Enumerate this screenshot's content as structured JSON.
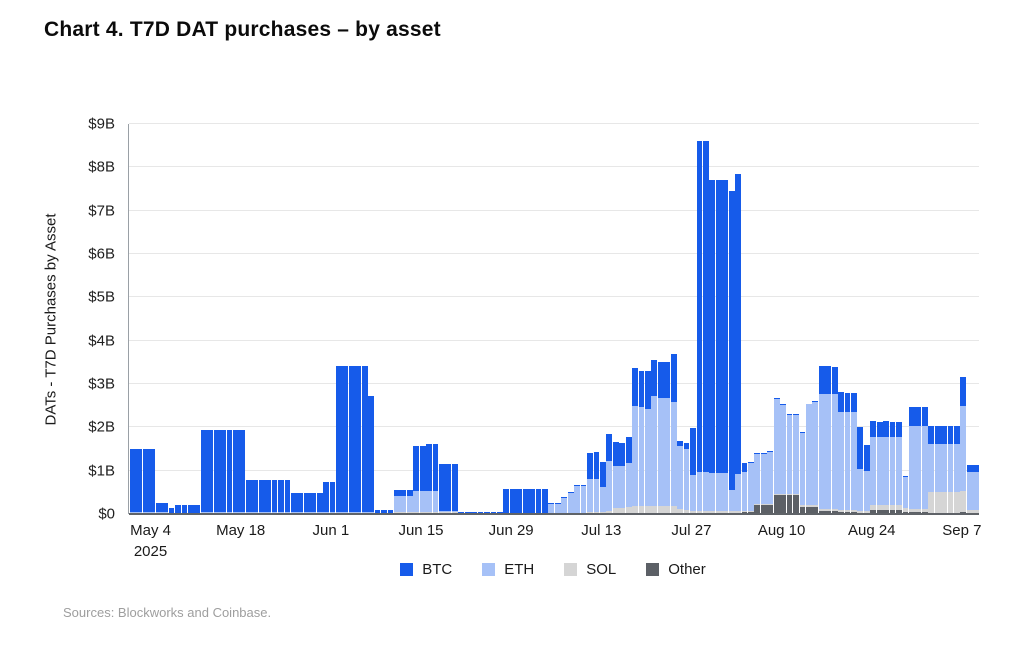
{
  "page": {
    "title": "Chart 4. T7D DAT purchases – by asset",
    "source_note": "Sources: Blockworks and Coinbase."
  },
  "chart_data": {
    "type": "bar",
    "stacked": true,
    "title": "Chart 4. T7D DAT purchases – by asset",
    "xlabel": "",
    "ylabel": "DATs - T7D Purchases by Asset",
    "y_unit": "USD billions",
    "ylim": [
      0,
      9
    ],
    "grid": true,
    "legend_position": "bottom",
    "y_tick_labels": [
      "$0",
      "$1B",
      "$2B",
      "$3B",
      "$4B",
      "$5B",
      "$6B",
      "$7B",
      "$8B",
      "$9B"
    ],
    "x_tick_labels": [
      "May 4",
      "May 18",
      "Jun 1",
      "Jun 15",
      "Jun 29",
      "Jul 13",
      "Jul 27",
      "Aug 10",
      "Aug 24",
      "Sep 7"
    ],
    "x_tick_year": "2025",
    "x_tick_bar_indices": [
      3,
      17,
      31,
      45,
      59,
      73,
      87,
      101,
      115,
      129
    ],
    "legend": [
      "BTC",
      "ETH",
      "SOL",
      "Other"
    ],
    "colors": {
      "BTC": "#165BEA",
      "ETH": "#A6C1F7",
      "SOL": "#D5D5D5",
      "Other": "#5C6066"
    },
    "series": [
      {
        "name": "BTC",
        "values": [
          1.46,
          1.46,
          1.46,
          1.46,
          0.21,
          0.21,
          0.12,
          0.19,
          0.19,
          0.19,
          0.19,
          1.91,
          1.91,
          1.91,
          1.89,
          1.89,
          1.89,
          1.89,
          0.74,
          0.74,
          0.74,
          0.74,
          0.74,
          0.74,
          0.74,
          0.44,
          0.44,
          0.44,
          0.44,
          0.44,
          0.71,
          0.71,
          3.38,
          3.38,
          3.38,
          3.38,
          3.38,
          2.68,
          0.07,
          0.07,
          0.07,
          0.14,
          0.14,
          0.14,
          1.04,
          1.04,
          1.09,
          1.09,
          1.07,
          1.07,
          1.07,
          0.03,
          0.03,
          0.03,
          0.03,
          0.03,
          0.03,
          0.03,
          0.55,
          0.55,
          0.55,
          0.55,
          0.55,
          0.55,
          0.55,
          0.02,
          0.02,
          0.02,
          0.02,
          0.02,
          0.02,
          0.62,
          0.62,
          0.57,
          0.62,
          0.54,
          0.53,
          0.61,
          0.86,
          0.84,
          0.88,
          0.84,
          0.82,
          0.84,
          1.12,
          0.12,
          0.15,
          1.09,
          7.65,
          7.65,
          6.75,
          6.75,
          6.75,
          6.9,
          6.93,
          0.21,
          0.02,
          0.02,
          0.02,
          0.02,
          0.02,
          0.02,
          0.02,
          0.02,
          0.02,
          0.02,
          0.02,
          0.64,
          0.64,
          0.62,
          0.46,
          0.44,
          0.44,
          0.97,
          0.61,
          0.37,
          0.34,
          0.37,
          0.34,
          0.34,
          0.02,
          0.44,
          0.44,
          0.44,
          0.41,
          0.41,
          0.41,
          0.41,
          0.41,
          0.67,
          0.17,
          0.17
        ]
      },
      {
        "name": "ETH",
        "values": [
          0.03,
          0.03,
          0.03,
          0.03,
          0.02,
          0.02,
          0.02,
          0.02,
          0.02,
          0.02,
          0.02,
          0.02,
          0.02,
          0.02,
          0.02,
          0.02,
          0.02,
          0.02,
          0.02,
          0.02,
          0.02,
          0.02,
          0.02,
          0.02,
          0.02,
          0.02,
          0.02,
          0.02,
          0.02,
          0.02,
          0.02,
          0.02,
          0.02,
          0.02,
          0.02,
          0.02,
          0.02,
          0.02,
          0.02,
          0.02,
          0.02,
          0.37,
          0.37,
          0.37,
          0.48,
          0.48,
          0.49,
          0.49,
          0.03,
          0.03,
          0.03,
          0.01,
          0.01,
          0.01,
          0.01,
          0.01,
          0.01,
          0.01,
          0.02,
          0.02,
          0.02,
          0.02,
          0.02,
          0.02,
          0.02,
          0.23,
          0.23,
          0.37,
          0.46,
          0.61,
          0.61,
          0.76,
          0.77,
          0.57,
          1.14,
          0.98,
          0.98,
          1.01,
          2.32,
          2.28,
          2.24,
          2.54,
          2.5,
          2.5,
          2.4,
          1.45,
          1.41,
          0.83,
          0.91,
          0.91,
          0.89,
          0.89,
          0.89,
          0.49,
          0.86,
          0.9,
          1.11,
          1.15,
          1.15,
          1.2,
          2.18,
          2.04,
          1.81,
          1.81,
          1.68,
          2.33,
          2.38,
          2.67,
          2.67,
          2.67,
          2.25,
          2.25,
          2.25,
          0.95,
          0.91,
          1.58,
          1.58,
          1.58,
          1.58,
          1.58,
          0.71,
          1.92,
          1.92,
          1.92,
          1.1,
          1.1,
          1.1,
          1.1,
          1.1,
          1.97,
          0.88,
          0.88
        ]
      },
      {
        "name": "SOL",
        "values": [
          0.01,
          0.01,
          0.01,
          0.01,
          0.01,
          0.01,
          0.01,
          0.01,
          0.01,
          0.01,
          0.01,
          0.01,
          0.01,
          0.01,
          0.01,
          0.01,
          0.01,
          0.01,
          0.01,
          0.01,
          0.01,
          0.01,
          0.01,
          0.01,
          0.01,
          0.01,
          0.01,
          0.01,
          0.01,
          0.01,
          0.01,
          0.01,
          0.01,
          0.01,
          0.01,
          0.01,
          0.01,
          0.01,
          0.01,
          0.01,
          0.01,
          0.02,
          0.02,
          0.02,
          0.02,
          0.02,
          0.02,
          0.02,
          0.02,
          0.02,
          0.02,
          0.01,
          0.01,
          0.01,
          0.01,
          0.01,
          0.01,
          0.01,
          0.01,
          0.01,
          0.01,
          0.01,
          0.01,
          0.01,
          0.01,
          0.01,
          0.01,
          0.01,
          0.02,
          0.03,
          0.03,
          0.03,
          0.03,
          0.04,
          0.06,
          0.12,
          0.12,
          0.14,
          0.16,
          0.16,
          0.16,
          0.16,
          0.16,
          0.16,
          0.16,
          0.09,
          0.07,
          0.04,
          0.04,
          0.04,
          0.04,
          0.04,
          0.04,
          0.04,
          0.04,
          0.02,
          0.02,
          0.03,
          0.03,
          0.03,
          0.03,
          0.03,
          0.03,
          0.03,
          0.04,
          0.04,
          0.04,
          0.05,
          0.05,
          0.05,
          0.06,
          0.06,
          0.06,
          0.05,
          0.05,
          0.1,
          0.1,
          0.1,
          0.1,
          0.1,
          0.09,
          0.08,
          0.08,
          0.08,
          0.48,
          0.48,
          0.48,
          0.48,
          0.48,
          0.48,
          0.07,
          0.07
        ]
      },
      {
        "name": "Other",
        "values": [
          0.01,
          0.01,
          0.01,
          0.01,
          0.01,
          0.01,
          0.0,
          0.0,
          0.0,
          0.0,
          0.0,
          0.01,
          0.01,
          0.01,
          0.01,
          0.01,
          0.01,
          0.01,
          0.01,
          0.01,
          0.01,
          0.01,
          0.01,
          0.01,
          0.01,
          0.01,
          0.01,
          0.01,
          0.01,
          0.01,
          0.01,
          0.01,
          0.01,
          0.01,
          0.01,
          0.01,
          0.01,
          0.01,
          0.0,
          0.0,
          0.0,
          0.02,
          0.02,
          0.02,
          0.02,
          0.02,
          0.02,
          0.02,
          0.03,
          0.03,
          0.03,
          0.0,
          0.0,
          0.0,
          0.0,
          0.0,
          0.0,
          0.0,
          0.0,
          0.0,
          0.0,
          0.0,
          0.0,
          0.0,
          0.0,
          0.0,
          0.0,
          0.0,
          0.0,
          0.0,
          0.0,
          0.01,
          0.01,
          0.01,
          0.02,
          0.02,
          0.02,
          0.02,
          0.02,
          0.02,
          0.02,
          0.02,
          0.02,
          0.02,
          0.02,
          0.02,
          0.02,
          0.02,
          0.02,
          0.02,
          0.02,
          0.02,
          0.02,
          0.02,
          0.02,
          0.04,
          0.04,
          0.2,
          0.2,
          0.2,
          0.44,
          0.44,
          0.44,
          0.44,
          0.16,
          0.16,
          0.16,
          0.06,
          0.06,
          0.06,
          0.04,
          0.04,
          0.04,
          0.03,
          0.03,
          0.1,
          0.1,
          0.1,
          0.1,
          0.1,
          0.05,
          0.04,
          0.04,
          0.04,
          0.03,
          0.03,
          0.03,
          0.03,
          0.03,
          0.04,
          0.02,
          0.02
        ]
      }
    ]
  }
}
